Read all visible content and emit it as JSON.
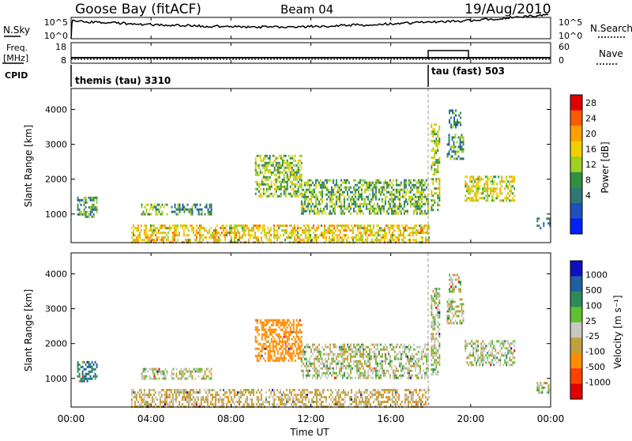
{
  "header": {
    "station": "Goose Bay (fitACF)",
    "beam": "Beam 04",
    "date": "19/Aug/2010"
  },
  "noise_panel": {
    "left_label": "N.Sky",
    "left_ticks": [
      "10^5",
      "10^0"
    ],
    "right_ticks": [
      "10^5",
      "10^0"
    ],
    "right_label": "N.Search"
  },
  "freq_panel": {
    "left_label_line1": "Freq.",
    "left_label_line2": "[MHz]",
    "left_ticks": [
      "18",
      "8"
    ],
    "right_ticks": [
      "60",
      "0"
    ],
    "right_label": "Nave"
  },
  "cpid_panel": {
    "label": "CPID",
    "programs": [
      {
        "name": "themis (tau) 3310",
        "start_hour": 0
      },
      {
        "name": "tau (fast) 503",
        "start_hour": 18
      }
    ]
  },
  "axes": {
    "ylabel": "Slant Range [km]",
    "y_ticks": [
      "4000",
      "3000",
      "2000",
      "1000"
    ],
    "y_tick_values": [
      4000,
      3000,
      2000,
      1000
    ],
    "ylim": [
      180,
      4600
    ],
    "x_ticks": [
      "00:00",
      "04:00",
      "08:00",
      "12:00",
      "16:00",
      "20:00",
      "00:00"
    ],
    "x_tick_hours": [
      0,
      4,
      8,
      12,
      16,
      20,
      24
    ],
    "xlabel": "Time UT",
    "xlim": [
      0,
      24
    ]
  },
  "power_scale": {
    "label": "Power [dB]",
    "ticks": [
      "28",
      "24",
      "20",
      "16",
      "12",
      "8",
      "4"
    ],
    "colors": [
      "#e00000",
      "#ff5a00",
      "#ffa000",
      "#f0d000",
      "#a0d020",
      "#309040",
      "#307878",
      "#2050c0",
      "#0020ff"
    ]
  },
  "velocity_scale": {
    "label": "Velocity [m s⁻¹]",
    "ticks": [
      "1000",
      "500",
      "100",
      "25",
      "-25",
      "-100",
      "-500",
      "-1000"
    ],
    "colors": [
      "#1010c0",
      "#2060a0",
      "#2e8b57",
      "#60c030",
      "#c8c8c0",
      "#c0a040",
      "#ff8c00",
      "#ff4000",
      "#e00000"
    ]
  },
  "chart_data": {
    "type": "heatmap",
    "title": "Goose Bay (fitACF) Beam 04 19/Aug/2010",
    "xlabel": "Time UT",
    "ylabel": "Slant Range [km]",
    "xlim": [
      0,
      24
    ],
    "ylim": [
      180,
      4600
    ],
    "mode_change_hour": 18,
    "echo_regions": [
      {
        "t0": 0.3,
        "t1": 1.3,
        "r0": 900,
        "r1": 1500,
        "power": 10,
        "velocity": 100
      },
      {
        "t0": 3.5,
        "t1": 4.8,
        "r0": 1000,
        "r1": 1300,
        "power": 14,
        "velocity": 0
      },
      {
        "t0": 5.0,
        "t1": 7.0,
        "r0": 1000,
        "r1": 1300,
        "power": 9,
        "velocity": 0
      },
      {
        "t0": 9.2,
        "t1": 11.5,
        "r0": 1500,
        "r1": 2700,
        "power": 14,
        "velocity": -300
      },
      {
        "t0": 11.5,
        "t1": 17.9,
        "r0": 1000,
        "r1": 2000,
        "power": 12,
        "velocity": 0
      },
      {
        "t0": 3.0,
        "t1": 17.9,
        "r0": 200,
        "r1": 700,
        "power": 18,
        "velocity": -50
      },
      {
        "t0": 18.0,
        "t1": 18.4,
        "r0": 1100,
        "r1": 3600,
        "power": 15,
        "velocity": 0
      },
      {
        "t0": 18.8,
        "t1": 19.6,
        "r0": 2600,
        "r1": 3300,
        "power": 10,
        "velocity": 0
      },
      {
        "t0": 18.9,
        "t1": 19.5,
        "r0": 3500,
        "r1": 4000,
        "power": 8,
        "velocity": 0
      },
      {
        "t0": 19.7,
        "t1": 22.2,
        "r0": 1400,
        "r1": 2100,
        "power": 16,
        "velocity": 0
      },
      {
        "t0": 23.3,
        "t1": 24.0,
        "r0": 600,
        "r1": 900,
        "power": 8,
        "velocity": 0
      }
    ]
  }
}
